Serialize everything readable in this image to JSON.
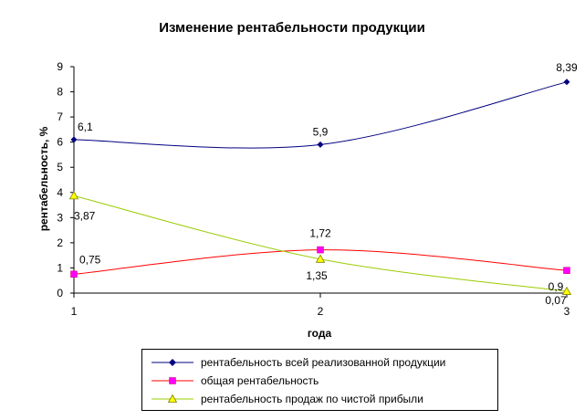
{
  "chart_data": {
    "type": "line",
    "title": "Изменение рентабельности продукции",
    "xlabel": "года",
    "ylabel": "рентабельность, %",
    "x": [
      1,
      2,
      3
    ],
    "xticks": [
      "1",
      "2",
      "3"
    ],
    "ylim": [
      0,
      9
    ],
    "yticks": [
      "0",
      "1",
      "2",
      "3",
      "4",
      "5",
      "6",
      "7",
      "8",
      "9"
    ],
    "smoothed": true,
    "grid": false,
    "legend_position": "bottom",
    "series": [
      {
        "name": "рентабельность всей реализованной продукции",
        "values": [
          6.1,
          5.9,
          8.39
        ],
        "labels": [
          "6,1",
          "5,9",
          "8,39"
        ],
        "color": "#000080",
        "marker": "diamond"
      },
      {
        "name": "общая рентабельность",
        "values": [
          0.75,
          1.72,
          0.9
        ],
        "labels": [
          "0,75",
          "1,72",
          "0,9"
        ],
        "color": "#ff00ff",
        "line_color": "#ff0000",
        "marker": "square"
      },
      {
        "name": "рентабельность продаж по чистой прибыли",
        "values": [
          3.87,
          1.35,
          0.07
        ],
        "labels": [
          "3,87",
          "1,35",
          "0,07"
        ],
        "color": "#ffff00",
        "line_color": "#99cc00",
        "marker": "triangle"
      }
    ]
  }
}
